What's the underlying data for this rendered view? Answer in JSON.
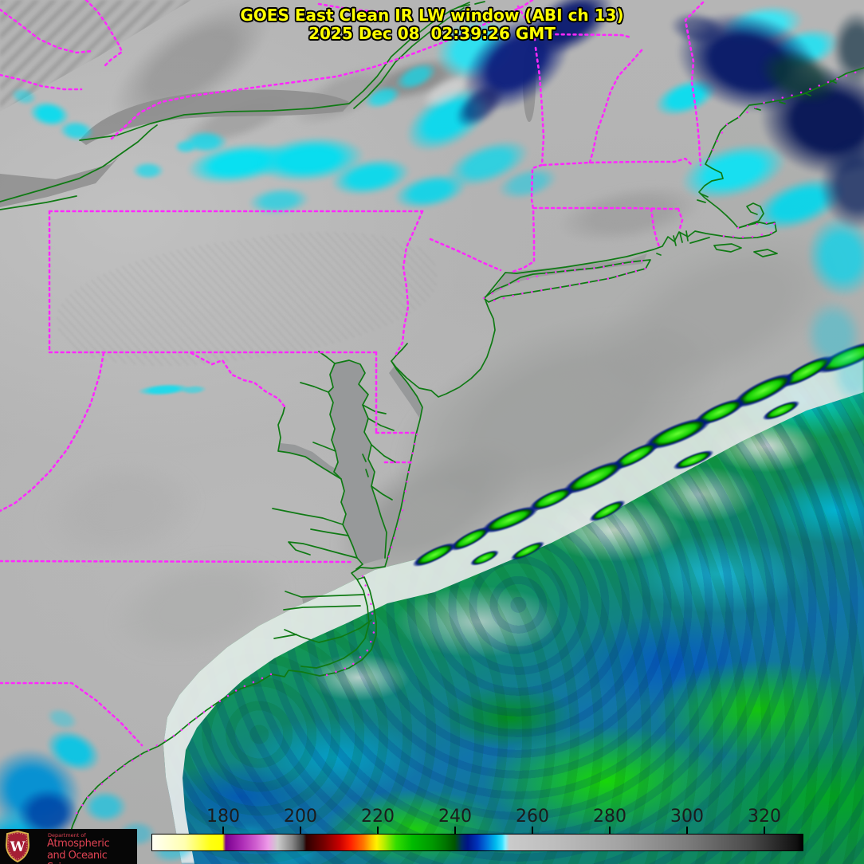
{
  "title": {
    "line1": "GOES East Clean IR LW window (ABI ch 13)",
    "line2": "2025 Dec 08  02:39:26 GMT"
  },
  "colorbar": {
    "ticks": [
      "180",
      "200",
      "220",
      "240",
      "260",
      "280",
      "300",
      "320"
    ]
  },
  "logo": {
    "department": "Department of",
    "line1": "Atmospheric",
    "line2": "and Oceanic Sciences",
    "monogram": "W"
  },
  "colors": {
    "title_text": "#ffff00",
    "state_border_magenta": "#ff28ff",
    "coastline_green": "#0f7a14",
    "cloud_cyan": "#00dcf0",
    "cloud_navy": "#0a1a70",
    "storm_green": "#22dd00",
    "logo_red": "#e04353"
  }
}
